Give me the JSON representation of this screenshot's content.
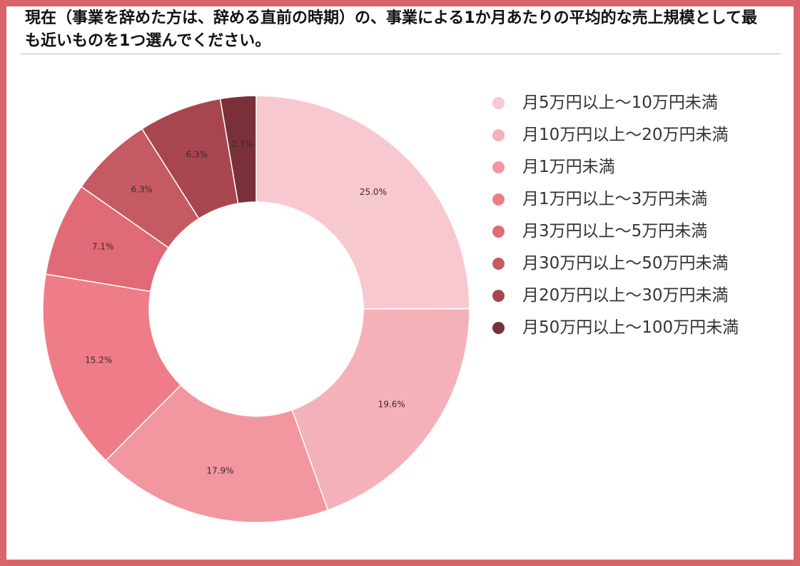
{
  "title": "現在（事業を辞めた方は、辞める直前の時期）の、事業による1か月あたりの平均的な売上規模として最も近いものを1つ選んでください。",
  "colors": {
    "frame": "#d9646c"
  },
  "chart_data": {
    "type": "pie",
    "donut": true,
    "values": [
      25.0,
      19.6,
      17.9,
      15.2,
      7.1,
      6.3,
      6.3,
      2.7
    ],
    "value_labels": [
      "25.0%",
      "19.6%",
      "17.9%",
      "15.2%",
      "7.1%",
      "6.3%",
      "6.3%",
      "2.7%"
    ],
    "categories": [
      "月5万円以上～10万円未満",
      "月10万円以上～20万円未満",
      "月1万円未満",
      "月1万円以上～3万円未満",
      "月3万円以上～5万円未満",
      "月30万円以上～50万円未満",
      "月20万円以上～30万円未満",
      "月50万円以上～100万円未満"
    ],
    "colors": [
      "#f8c8d1",
      "#f5b1ba",
      "#f2969f",
      "#ee7d88",
      "#e06a75",
      "#c65a63",
      "#a8464f",
      "#7a3039"
    ],
    "legend_position": "right",
    "start_angle": "top",
    "direction": "clockwise"
  }
}
